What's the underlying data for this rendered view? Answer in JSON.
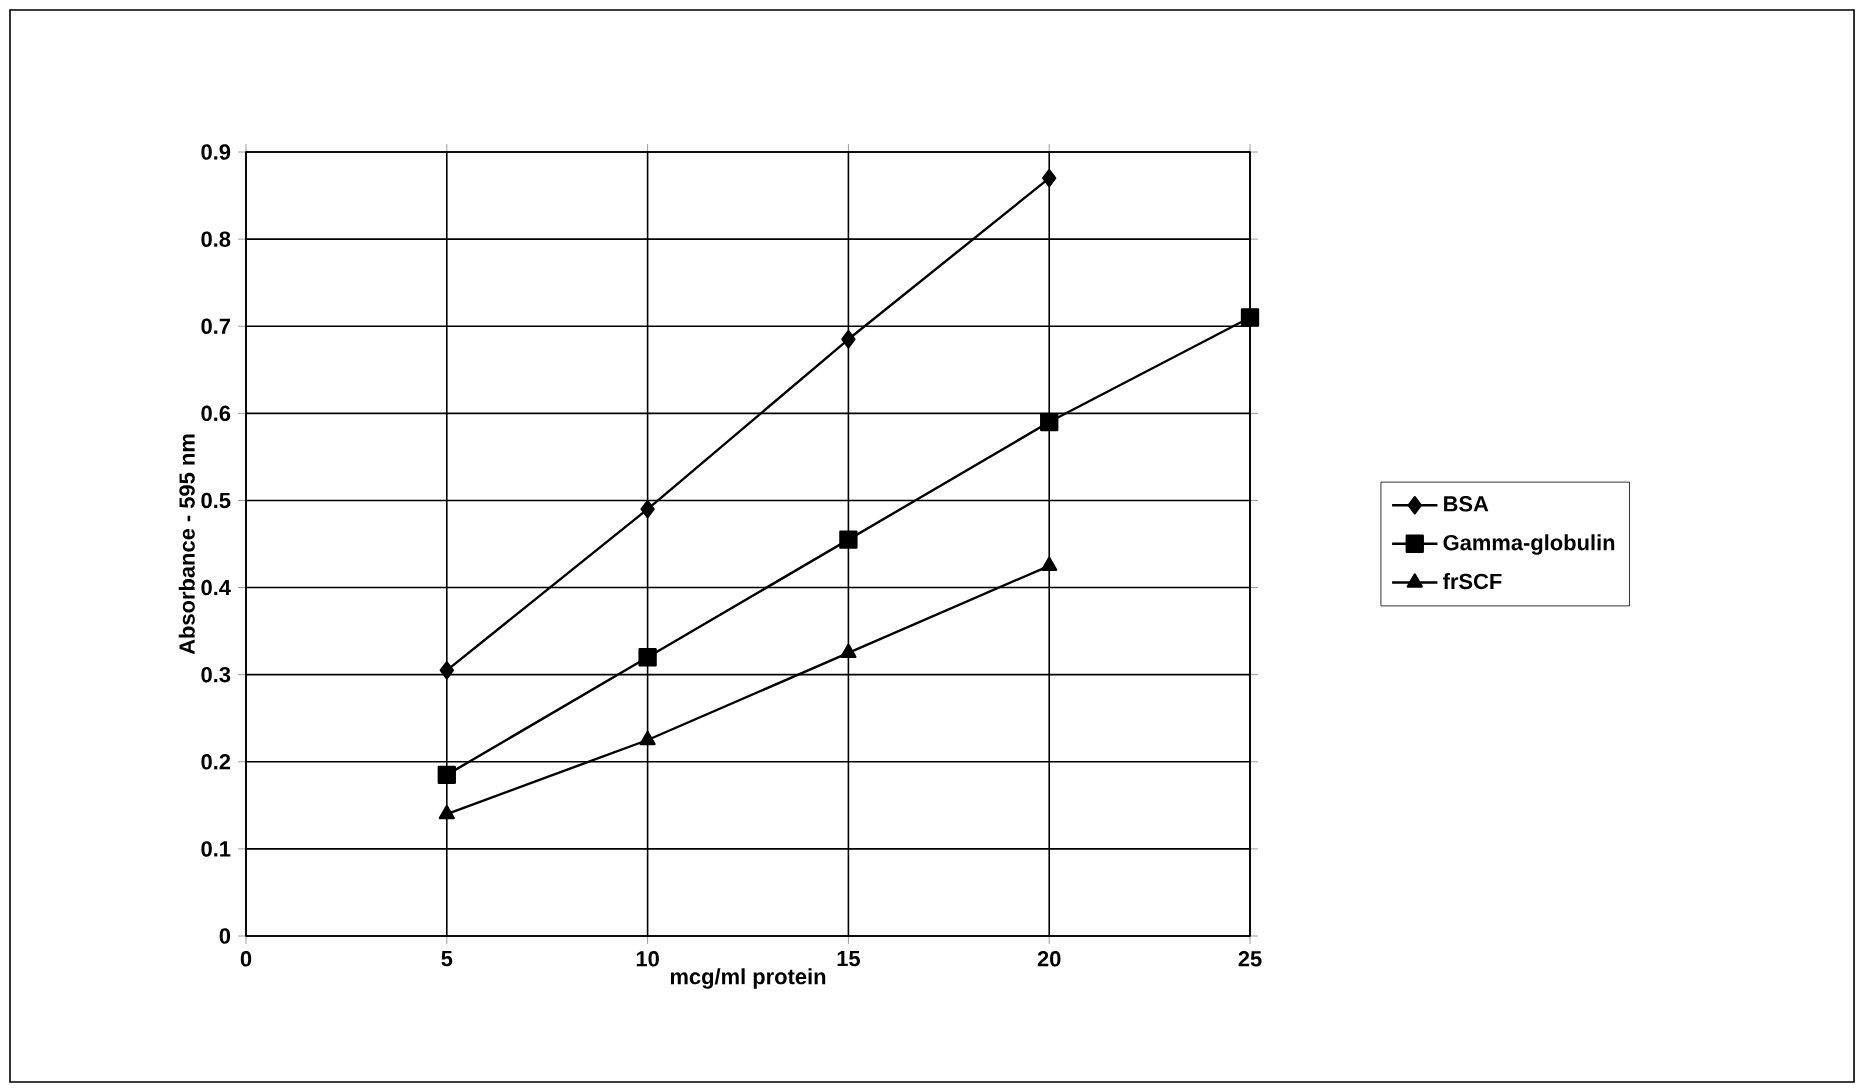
{
  "chart_data": {
    "type": "line",
    "xlabel": "mcg/ml protein",
    "ylabel": "Absorbance - 595 nm",
    "x": [
      5,
      10,
      15,
      20,
      25
    ],
    "series": [
      {
        "name": "BSA",
        "color": "#000000",
        "marker": "diamond",
        "values": [
          0.305,
          0.49,
          0.685,
          0.87,
          null
        ]
      },
      {
        "name": "Gamma-globulin",
        "color": "#000000",
        "marker": "square",
        "values": [
          0.185,
          0.32,
          0.455,
          0.59,
          0.71
        ]
      },
      {
        "name": "frSCF",
        "color": "#000000",
        "marker": "triangle",
        "values": [
          0.14,
          0.225,
          0.325,
          0.425,
          null
        ]
      }
    ],
    "xlim": [
      0,
      25
    ],
    "xticks": [
      0,
      5,
      10,
      15,
      20,
      25
    ],
    "ylim": [
      0,
      0.9
    ],
    "yticks": [
      0,
      0.1,
      0.2,
      0.3,
      0.4,
      0.5,
      0.6,
      0.7,
      0.8,
      0.9
    ],
    "grid": true,
    "legend": "right",
    "line_style": "solid"
  }
}
